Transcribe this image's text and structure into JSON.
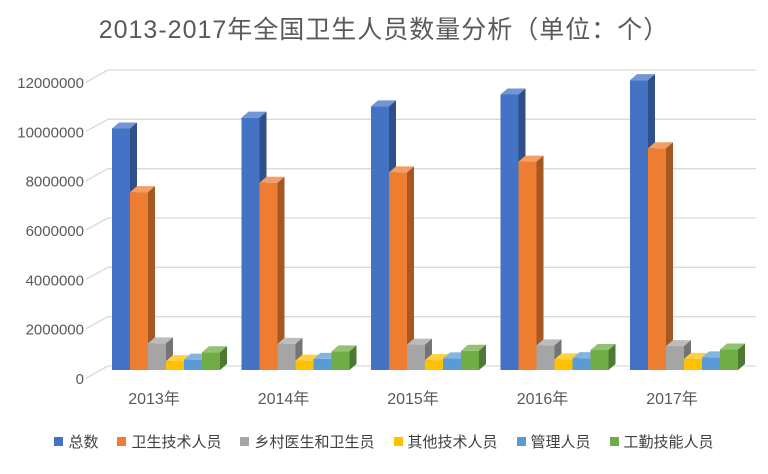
{
  "chart_data": {
    "type": "bar",
    "style": "3d-column-grouped",
    "title": "2013-2017年全国卫生人员数量分析（单位：个）",
    "categories": [
      "2013年",
      "2014年",
      "2015年",
      "2016年",
      "2017年"
    ],
    "series": [
      {
        "name": "总数",
        "color": "#4472C4",
        "values": [
          9790000,
          10230000,
          10690000,
          11170000,
          11750000
        ]
      },
      {
        "name": "卫生技术人员",
        "color": "#ED7D31",
        "values": [
          7210000,
          7590000,
          8010000,
          8450000,
          8990000
        ]
      },
      {
        "name": "乡村医生和卫生员",
        "color": "#A5A5A5",
        "values": [
          1080000,
          1060000,
          1030000,
          1000000,
          970000
        ]
      },
      {
        "name": "其他技术人员",
        "color": "#FFC000",
        "values": [
          360000,
          380000,
          400000,
          430000,
          450000
        ]
      },
      {
        "name": "管理人员",
        "color": "#5B9BD5",
        "values": [
          420000,
          450000,
          470000,
          480000,
          510000
        ]
      },
      {
        "name": "工勤技能人员",
        "color": "#70AD47",
        "values": [
          720000,
          755000,
          780000,
          810000,
          830000
        ]
      }
    ],
    "y_axis": {
      "min": 0,
      "max": 12000000,
      "step": 2000000,
      "tick_labels": [
        "0",
        "2000000",
        "4000000",
        "6000000",
        "8000000",
        "10000000",
        "12000000"
      ]
    },
    "xlabel": "",
    "ylabel": "",
    "grid": true,
    "legend_position": "bottom"
  },
  "colors": {
    "background": "#FFFFFF",
    "title_text": "#595959",
    "axis_text": "#595959",
    "legend_text": "#404040",
    "gridline": "#D9D9D9"
  }
}
